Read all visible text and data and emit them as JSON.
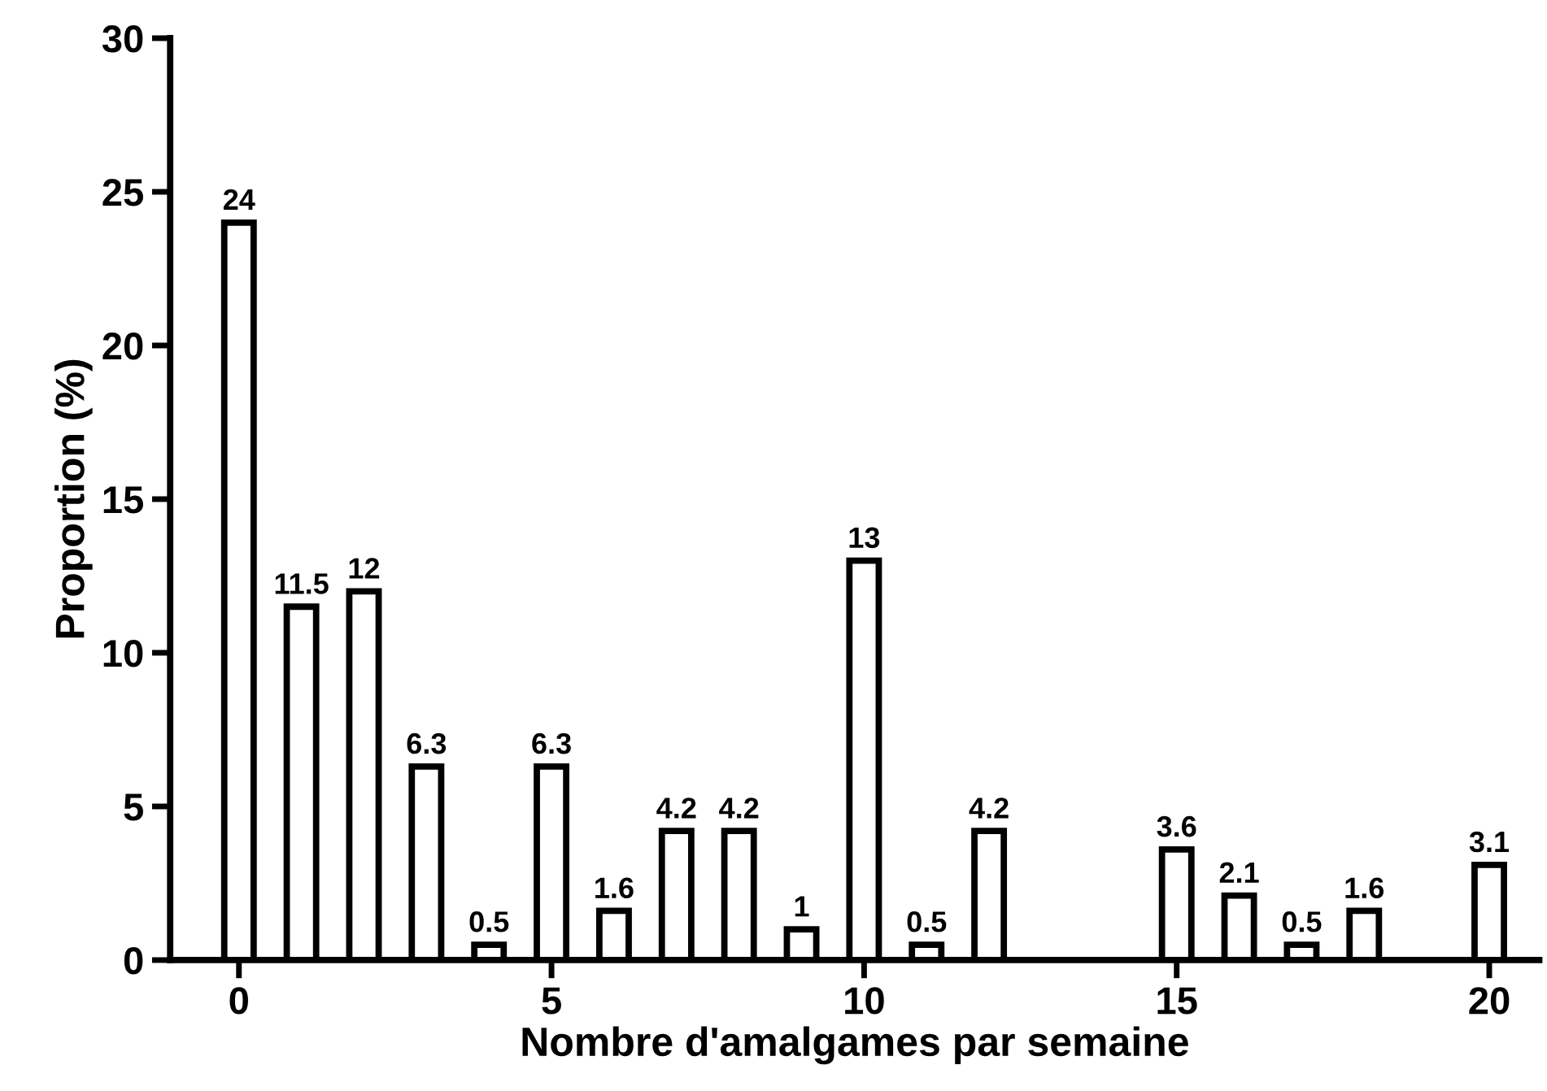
{
  "chart_data": {
    "type": "bar",
    "xlabel": "Nombre d'amalgames par semaine",
    "ylabel": "Proportion (%)",
    "x": [
      0,
      1,
      2,
      3,
      4,
      5,
      6,
      7,
      8,
      9,
      10,
      11,
      12,
      15,
      16,
      17,
      18,
      20
    ],
    "values": [
      24,
      11.5,
      12,
      6.3,
      0.5,
      6.3,
      1.6,
      4.2,
      4.2,
      1,
      13,
      0.5,
      4.2,
      3.6,
      2.1,
      0.5,
      1.6,
      3.1
    ],
    "color": "#ffffff",
    "xlim": [
      -1.1,
      20.8
    ],
    "xticks": [
      0,
      5,
      10,
      15,
      20
    ],
    "ylim": [
      0,
      30
    ],
    "yticks": [
      0,
      5,
      10,
      15,
      20,
      25,
      30
    ],
    "data_labels": true,
    "grid": false,
    "legend": false
  }
}
